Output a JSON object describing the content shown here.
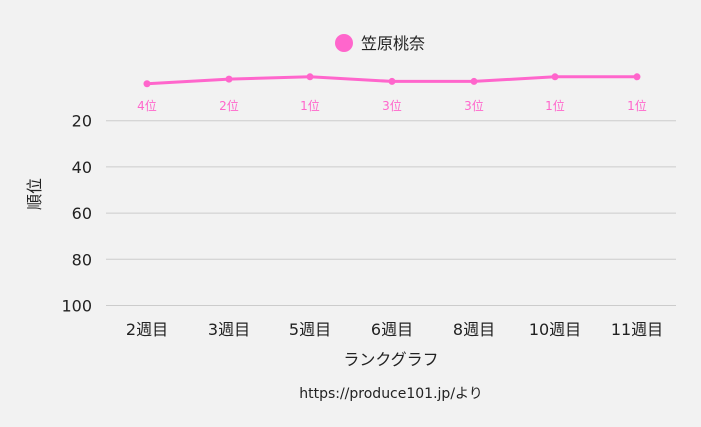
{
  "chart_data": {
    "type": "line",
    "categories": [
      "2週目",
      "3週目",
      "5週目",
      "6週目",
      "8週目",
      "10週目",
      "11週目"
    ],
    "series": [
      {
        "name": "笠原桃奈",
        "color": "#ff66cc",
        "values": [
          4,
          2,
          1,
          3,
          3,
          1,
          1
        ],
        "labels": [
          "4位",
          "2位",
          "1位",
          "3位",
          "3位",
          "1位",
          "1位"
        ]
      }
    ],
    "xlabel": "ランクグラフ",
    "ylabel": "順位",
    "yticks": [
      20,
      40,
      60,
      80,
      100
    ],
    "ylim": [
      0,
      100
    ],
    "y_reversed": true,
    "grid": true,
    "legend_position": "top-center"
  },
  "caption": "https://produce101.jp/より"
}
